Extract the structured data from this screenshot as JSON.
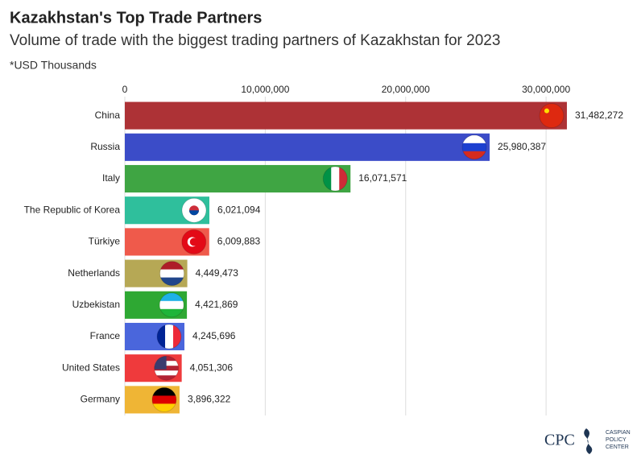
{
  "chart_data": {
    "type": "hbar",
    "title": "Kazakhstan's Top Trade Partners",
    "subtitle": "Volume of trade with the biggest trading partners of Kazakhstan for 2023",
    "note": "*USD Thousands",
    "categories": [
      "China",
      "Russia",
      "Italy",
      "The Republic of Korea",
      "Türkiye",
      "Netherlands",
      "Uzbekistan",
      "France",
      "United States",
      "Germany"
    ],
    "values": [
      31482272,
      25980387,
      16071571,
      6021094,
      6009883,
      4449473,
      4421869,
      4245696,
      4051306,
      3896322
    ],
    "value_labels": [
      "31,482,272",
      "25,980,387",
      "16,071,571",
      "6,021,094",
      "6,009,883",
      "4,449,473",
      "4,421,869",
      "4,245,696",
      "4,051,306",
      "3,896,322"
    ],
    "colors": [
      "#ad3236",
      "#3b4cc8",
      "#3fa543",
      "#2fbf9c",
      "#ef5a4b",
      "#b6a855",
      "#2ea833",
      "#4a66dc",
      "#ef3a3c",
      "#efb535"
    ],
    "xlim": [
      0,
      32000000
    ],
    "xticks": [
      0,
      {
        "value": 10000000,
        "label": "10,000,000"
      },
      {
        "value": 20000000,
        "label": "20,000,000"
      },
      {
        "value": 30000000,
        "label": "30,000,000"
      }
    ],
    "grid": true
  },
  "logo": {
    "mark": "CPC",
    "name": [
      "CASPIAN",
      "POLICY",
      "CENTER"
    ]
  }
}
